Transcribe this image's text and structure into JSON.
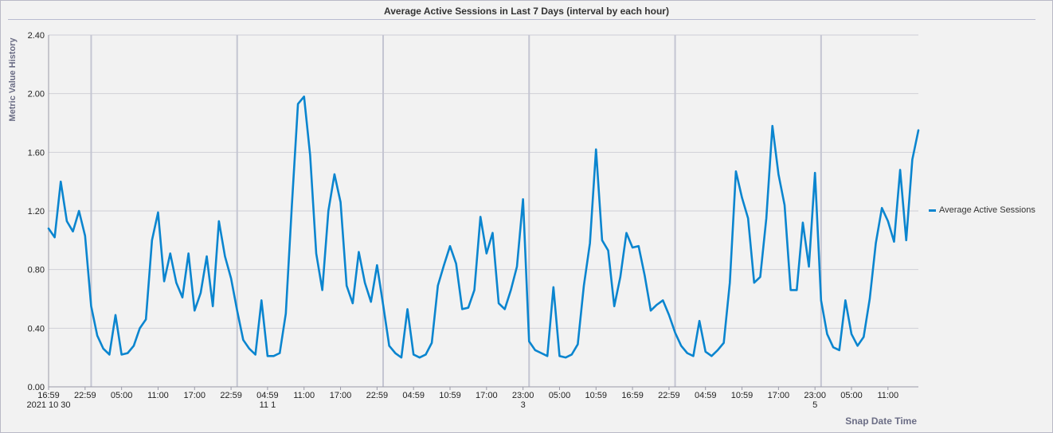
{
  "chart_data": {
    "type": "line",
    "title": "Average Active Sessions in Last 7 Days (interval by each hour)",
    "ylabel": "Metric Value History",
    "xlabel": "Snap Date Time",
    "ylim": [
      0,
      2.4
    ],
    "yticks": [
      "0.00",
      "0.40",
      "0.80",
      "1.20",
      "1.60",
      "2.00",
      "2.40"
    ],
    "xticks": [
      {
        "label": "16:59",
        "sub": "2021\u0001 10\u0001 30\u0001",
        "idx": 0
      },
      {
        "label": "22:59",
        "sub": "",
        "idx": 6
      },
      {
        "label": "05:00",
        "sub": "",
        "idx": 12
      },
      {
        "label": "11:00",
        "sub": "",
        "idx": 18
      },
      {
        "label": "17:00",
        "sub": "",
        "idx": 24
      },
      {
        "label": "22:59",
        "sub": "",
        "idx": 30
      },
      {
        "label": "04:59",
        "sub": "11\u0001 1\u0001",
        "idx": 36
      },
      {
        "label": "11:00",
        "sub": "",
        "idx": 42
      },
      {
        "label": "17:00",
        "sub": "",
        "idx": 48
      },
      {
        "label": "22:59",
        "sub": "",
        "idx": 54
      },
      {
        "label": "04:59",
        "sub": "",
        "idx": 60
      },
      {
        "label": "10:59",
        "sub": "",
        "idx": 66
      },
      {
        "label": "17:00",
        "sub": "",
        "idx": 72
      },
      {
        "label": "23:00",
        "sub": "3\u0001",
        "idx": 78
      },
      {
        "label": "05:00",
        "sub": "",
        "idx": 84
      },
      {
        "label": "10:59",
        "sub": "",
        "idx": 90
      },
      {
        "label": "16:59",
        "sub": "",
        "idx": 96
      },
      {
        "label": "22:59",
        "sub": "",
        "idx": 102
      },
      {
        "label": "04:59",
        "sub": "",
        "idx": 108
      },
      {
        "label": "10:59",
        "sub": "",
        "idx": 114
      },
      {
        "label": "17:00",
        "sub": "",
        "idx": 120
      },
      {
        "label": "23:00",
        "sub": "5\u0001",
        "idx": 126
      },
      {
        "label": "05:00",
        "sub": "",
        "idx": 132
      },
      {
        "label": "11:00",
        "sub": "",
        "idx": 138
      }
    ],
    "day_boundaries": [
      7,
      31,
      55,
      79,
      103,
      127
    ],
    "series": [
      {
        "name": "Average Active Sessions",
        "color": "#0a85cf",
        "values": [
          1.08,
          1.02,
          1.4,
          1.13,
          1.06,
          1.2,
          1.03,
          0.55,
          0.35,
          0.26,
          0.22,
          0.49,
          0.22,
          0.23,
          0.28,
          0.4,
          0.46,
          1.0,
          1.19,
          0.72,
          0.91,
          0.71,
          0.61,
          0.91,
          0.52,
          0.64,
          0.89,
          0.55,
          1.13,
          0.89,
          0.74,
          0.52,
          0.32,
          0.26,
          0.22,
          0.59,
          0.21,
          0.21,
          0.23,
          0.5,
          1.24,
          1.93,
          1.98,
          1.58,
          0.91,
          0.66,
          1.2,
          1.45,
          1.26,
          0.69,
          0.57,
          0.92,
          0.71,
          0.58,
          0.83,
          0.56,
          0.28,
          0.23,
          0.2,
          0.53,
          0.22,
          0.2,
          0.22,
          0.3,
          0.69,
          0.83,
          0.96,
          0.84,
          0.53,
          0.54,
          0.66,
          1.16,
          0.91,
          1.05,
          0.57,
          0.53,
          0.66,
          0.82,
          1.28,
          0.31,
          0.25,
          0.23,
          0.21,
          0.68,
          0.21,
          0.2,
          0.22,
          0.29,
          0.69,
          0.98,
          1.62,
          1.0,
          0.93,
          0.55,
          0.75,
          1.05,
          0.95,
          0.96,
          0.76,
          0.52,
          0.56,
          0.59,
          0.49,
          0.37,
          0.28,
          0.23,
          0.21,
          0.45,
          0.24,
          0.21,
          0.25,
          0.3,
          0.71,
          1.47,
          1.29,
          1.15,
          0.71,
          0.75,
          1.15,
          1.78,
          1.45,
          1.24,
          0.66,
          0.66,
          1.12,
          0.82,
          1.46,
          0.59,
          0.36,
          0.27,
          0.25,
          0.59,
          0.36,
          0.28,
          0.34,
          0.6,
          0.98,
          1.22,
          1.13,
          0.99,
          1.48,
          1.0,
          1.55,
          1.75
        ]
      }
    ],
    "grid": true,
    "legend_position": "right"
  }
}
